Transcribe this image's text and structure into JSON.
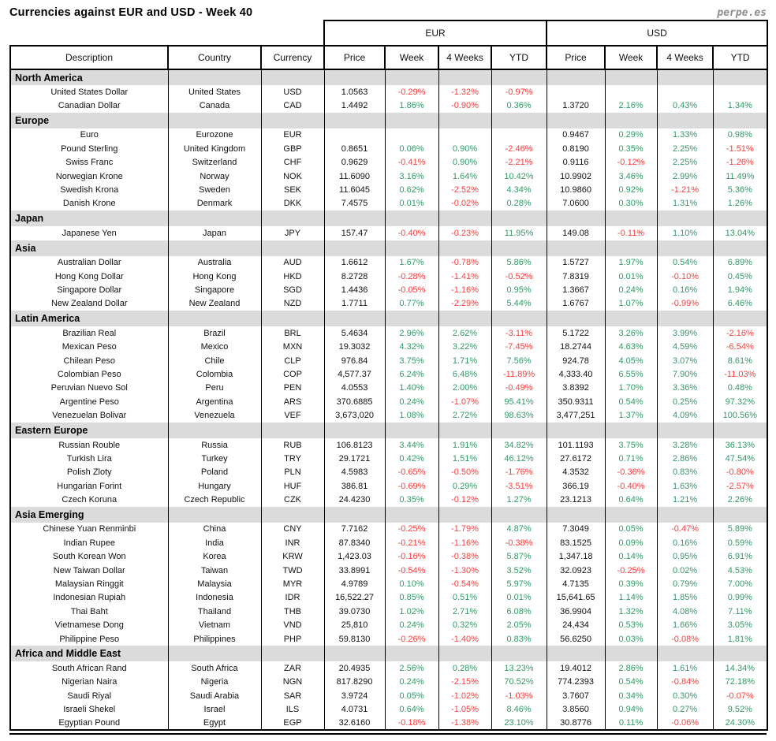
{
  "page": {
    "title": "Currencies against EUR and USD - Week 40",
    "brand": "perpe.es"
  },
  "colors": {
    "positive": "#339966",
    "negative": "#ff3d3d",
    "grid": "#000000",
    "section_bg": "#dbdbdb",
    "brand": "#8c8c8c"
  },
  "chart_data": {
    "type": "table",
    "title": "Currencies against EUR and USD - Week 40",
    "group_columns": [
      {
        "label": "EUR",
        "span": 4
      },
      {
        "label": "USD",
        "span": 4
      }
    ],
    "columns": [
      "Description",
      "Country",
      "Currency",
      "Price",
      "Week",
      "4 Weeks",
      "YTD",
      "Price",
      "Week",
      "4 Weeks",
      "YTD"
    ],
    "percent_column_indexes": [
      4,
      5,
      6,
      8,
      9,
      10
    ],
    "sections": [
      {
        "name": "North America",
        "rows": [
          [
            "United States Dollar",
            "United States",
            "USD",
            "1.0563",
            "-0.29%",
            "-1.32%",
            "-0.97%",
            "",
            "",
            "",
            ""
          ],
          [
            "Canadian Dollar",
            "Canada",
            "CAD",
            "1.4492",
            "1.86%",
            "-0.90%",
            "0.36%",
            "1.3720",
            "2.16%",
            "0.43%",
            "1.34%"
          ]
        ]
      },
      {
        "name": "Europe",
        "rows": [
          [
            "Euro",
            "Eurozone",
            "EUR",
            "",
            "",
            "",
            "",
            "0.9467",
            "0.29%",
            "1.33%",
            "0.98%"
          ],
          [
            "Pound Sterling",
            "United Kingdom",
            "GBP",
            "0.8651",
            "0.06%",
            "0.90%",
            "-2.46%",
            "0.8190",
            "0.35%",
            "2.25%",
            "-1.51%"
          ],
          [
            "Swiss Franc",
            "Switzerland",
            "CHF",
            "0.9629",
            "-0.41%",
            "0.90%",
            "-2.21%",
            "0.9116",
            "-0.12%",
            "2.25%",
            "-1.26%"
          ],
          [
            "Norwegian Krone",
            "Norway",
            "NOK",
            "11.6090",
            "3.16%",
            "1.64%",
            "10.42%",
            "10.9902",
            "3.46%",
            "2.99%",
            "11.49%"
          ],
          [
            "Swedish Krona",
            "Sweden",
            "SEK",
            "11.6045",
            "0.62%",
            "-2.52%",
            "4.34%",
            "10.9860",
            "0.92%",
            "-1.21%",
            "5.36%"
          ],
          [
            "Danish Krone",
            "Denmark",
            "DKK",
            "7.4575",
            "0.01%",
            "-0.02%",
            "0.28%",
            "7.0600",
            "0.30%",
            "1.31%",
            "1.26%"
          ]
        ]
      },
      {
        "name": "Japan",
        "rows": [
          [
            "Japanese Yen",
            "Japan",
            "JPY",
            "157.47",
            "-0.40%",
            "-0.23%",
            "11.95%",
            "149.08",
            "-0.11%",
            "1.10%",
            "13.04%"
          ]
        ]
      },
      {
        "name": "Asia",
        "rows": [
          [
            "Australian Dollar",
            "Australia",
            "AUD",
            "1.6612",
            "1.67%",
            "-0.78%",
            "5.86%",
            "1.5727",
            "1.97%",
            "0.54%",
            "6.89%"
          ],
          [
            "Hong Kong Dollar",
            "Hong Kong",
            "HKD",
            "8.2728",
            "-0.28%",
            "-1.41%",
            "-0.52%",
            "7.8319",
            "0.01%",
            "-0.10%",
            "0.45%"
          ],
          [
            "Singapore Dollar",
            "Singapore",
            "SGD",
            "1.4436",
            "-0.05%",
            "-1.16%",
            "0.95%",
            "1.3667",
            "0.24%",
            "0.16%",
            "1.94%"
          ],
          [
            "New Zealand Dollar",
            "New Zealand",
            "NZD",
            "1.7711",
            "0.77%",
            "-2.29%",
            "5.44%",
            "1.6767",
            "1.07%",
            "-0.99%",
            "6.46%"
          ]
        ]
      },
      {
        "name": "Latin America",
        "rows": [
          [
            "Brazilian Real",
            "Brazil",
            "BRL",
            "5.4634",
            "2.96%",
            "2.62%",
            "-3.11%",
            "5.1722",
            "3.26%",
            "3.99%",
            "-2.16%"
          ],
          [
            "Mexican Peso",
            "Mexico",
            "MXN",
            "19.3032",
            "4.32%",
            "3.22%",
            "-7.45%",
            "18.2744",
            "4.63%",
            "4.59%",
            "-6.54%"
          ],
          [
            "Chilean Peso",
            "Chile",
            "CLP",
            "976.84",
            "3.75%",
            "1.71%",
            "7.56%",
            "924.78",
            "4.05%",
            "3.07%",
            "8.61%"
          ],
          [
            "Colombian Peso",
            "Colombia",
            "COP",
            "4,577.37",
            "6.24%",
            "6.48%",
            "-11.89%",
            "4,333.40",
            "6.55%",
            "7.90%",
            "-11.03%"
          ],
          [
            "Peruvian Nuevo Sol",
            "Peru",
            "PEN",
            "4.0553",
            "1.40%",
            "2.00%",
            "-0.49%",
            "3.8392",
            "1.70%",
            "3.36%",
            "0.48%"
          ],
          [
            "Argentine Peso",
            "Argentina",
            "ARS",
            "370.6885",
            "0.24%",
            "-1.07%",
            "95.41%",
            "350.9311",
            "0.54%",
            "0.25%",
            "97.32%"
          ],
          [
            "Venezuelan Bolivar",
            "Venezuela",
            "VEF",
            "3,673,020",
            "1.08%",
            "2.72%",
            "98.63%",
            "3,477,251",
            "1.37%",
            "4.09%",
            "100.56%"
          ]
        ]
      },
      {
        "name": "Eastern Europe",
        "rows": [
          [
            "Russian Rouble",
            "Russia",
            "RUB",
            "106.8123",
            "3.44%",
            "1.91%",
            "34.82%",
            "101.1193",
            "3.75%",
            "3.28%",
            "36.13%"
          ],
          [
            "Turkish Lira",
            "Turkey",
            "TRY",
            "29.1721",
            "0.42%",
            "1.51%",
            "46.12%",
            "27.6172",
            "0.71%",
            "2.86%",
            "47.54%"
          ],
          [
            "Polish Zloty",
            "Poland",
            "PLN",
            "4.5983",
            "-0.65%",
            "-0.50%",
            "-1.76%",
            "4.3532",
            "-0.36%",
            "0.83%",
            "-0.80%"
          ],
          [
            "Hungarian Forint",
            "Hungary",
            "HUF",
            "386.81",
            "-0.69%",
            "0.29%",
            "-3.51%",
            "366.19",
            "-0.40%",
            "1.63%",
            "-2.57%"
          ],
          [
            "Czech Koruna",
            "Czech Republic",
            "CZK",
            "24.4230",
            "0.35%",
            "-0.12%",
            "1.27%",
            "23.1213",
            "0.64%",
            "1.21%",
            "2.26%"
          ]
        ]
      },
      {
        "name": "Asia Emerging",
        "rows": [
          [
            "Chinese Yuan Renminbi",
            "China",
            "CNY",
            "7.7162",
            "-0.25%",
            "-1.79%",
            "4.87%",
            "7.3049",
            "0.05%",
            "-0.47%",
            "5.89%"
          ],
          [
            "Indian Rupee",
            "India",
            "INR",
            "87.8340",
            "-0.21%",
            "-1.16%",
            "-0.38%",
            "83.1525",
            "0.09%",
            "0.16%",
            "0.59%"
          ],
          [
            "South Korean Won",
            "Korea",
            "KRW",
            "1,423.03",
            "-0.16%",
            "-0.38%",
            "5.87%",
            "1,347.18",
            "0.14%",
            "0.95%",
            "6.91%"
          ],
          [
            "New Taiwan Dollar",
            "Taiwan",
            "TWD",
            "33.8991",
            "-0.54%",
            "-1.30%",
            "3.52%",
            "32.0923",
            "-0.25%",
            "0.02%",
            "4.53%"
          ],
          [
            "Malaysian Ringgit",
            "Malaysia",
            "MYR",
            "4.9789",
            "0.10%",
            "-0.54%",
            "5.97%",
            "4.7135",
            "0.39%",
            "0.79%",
            "7.00%"
          ],
          [
            "Indonesian Rupiah",
            "Indonesia",
            "IDR",
            "16,522.27",
            "0.85%",
            "0.51%",
            "0.01%",
            "15,641.65",
            "1.14%",
            "1.85%",
            "0.99%"
          ],
          [
            "Thai Baht",
            "Thailand",
            "THB",
            "39.0730",
            "1.02%",
            "2.71%",
            "6.08%",
            "36.9904",
            "1.32%",
            "4.08%",
            "7.11%"
          ],
          [
            "Vietnamese Dong",
            "Vietnam",
            "VND",
            "25,810",
            "0.24%",
            "0.32%",
            "2.05%",
            "24,434",
            "0.53%",
            "1.66%",
            "3.05%"
          ],
          [
            "Philippine Peso",
            "Philippines",
            "PHP",
            "59.8130",
            "-0.26%",
            "-1.40%",
            "0.83%",
            "56.6250",
            "0.03%",
            "-0.08%",
            "1.81%"
          ]
        ]
      },
      {
        "name": "Africa and Middle East",
        "rows": [
          [
            "South African Rand",
            "South Africa",
            "ZAR",
            "20.4935",
            "2.56%",
            "0.28%",
            "13.23%",
            "19.4012",
            "2.86%",
            "1.61%",
            "14.34%"
          ],
          [
            "Nigerian Naira",
            "Nigeria",
            "NGN",
            "817.8290",
            "0.24%",
            "-2.15%",
            "70.52%",
            "774.2393",
            "0.54%",
            "-0.84%",
            "72.18%"
          ],
          [
            "Saudi Riyal",
            "Saudi Arabia",
            "SAR",
            "3.9724",
            "0.05%",
            "-1.02%",
            "-1.03%",
            "3.7607",
            "0.34%",
            "0.30%",
            "-0.07%"
          ],
          [
            "Israeli Shekel",
            "Israel",
            "ILS",
            "4.0731",
            "0.64%",
            "-1.05%",
            "8.46%",
            "3.8560",
            "0.94%",
            "0.27%",
            "9.52%"
          ],
          [
            "Egyptian Pound",
            "Egypt",
            "EGP",
            "32.6160",
            "-0.18%",
            "-1.38%",
            "23.10%",
            "30.8776",
            "0.11%",
            "-0.06%",
            "24.30%"
          ]
        ]
      }
    ]
  }
}
